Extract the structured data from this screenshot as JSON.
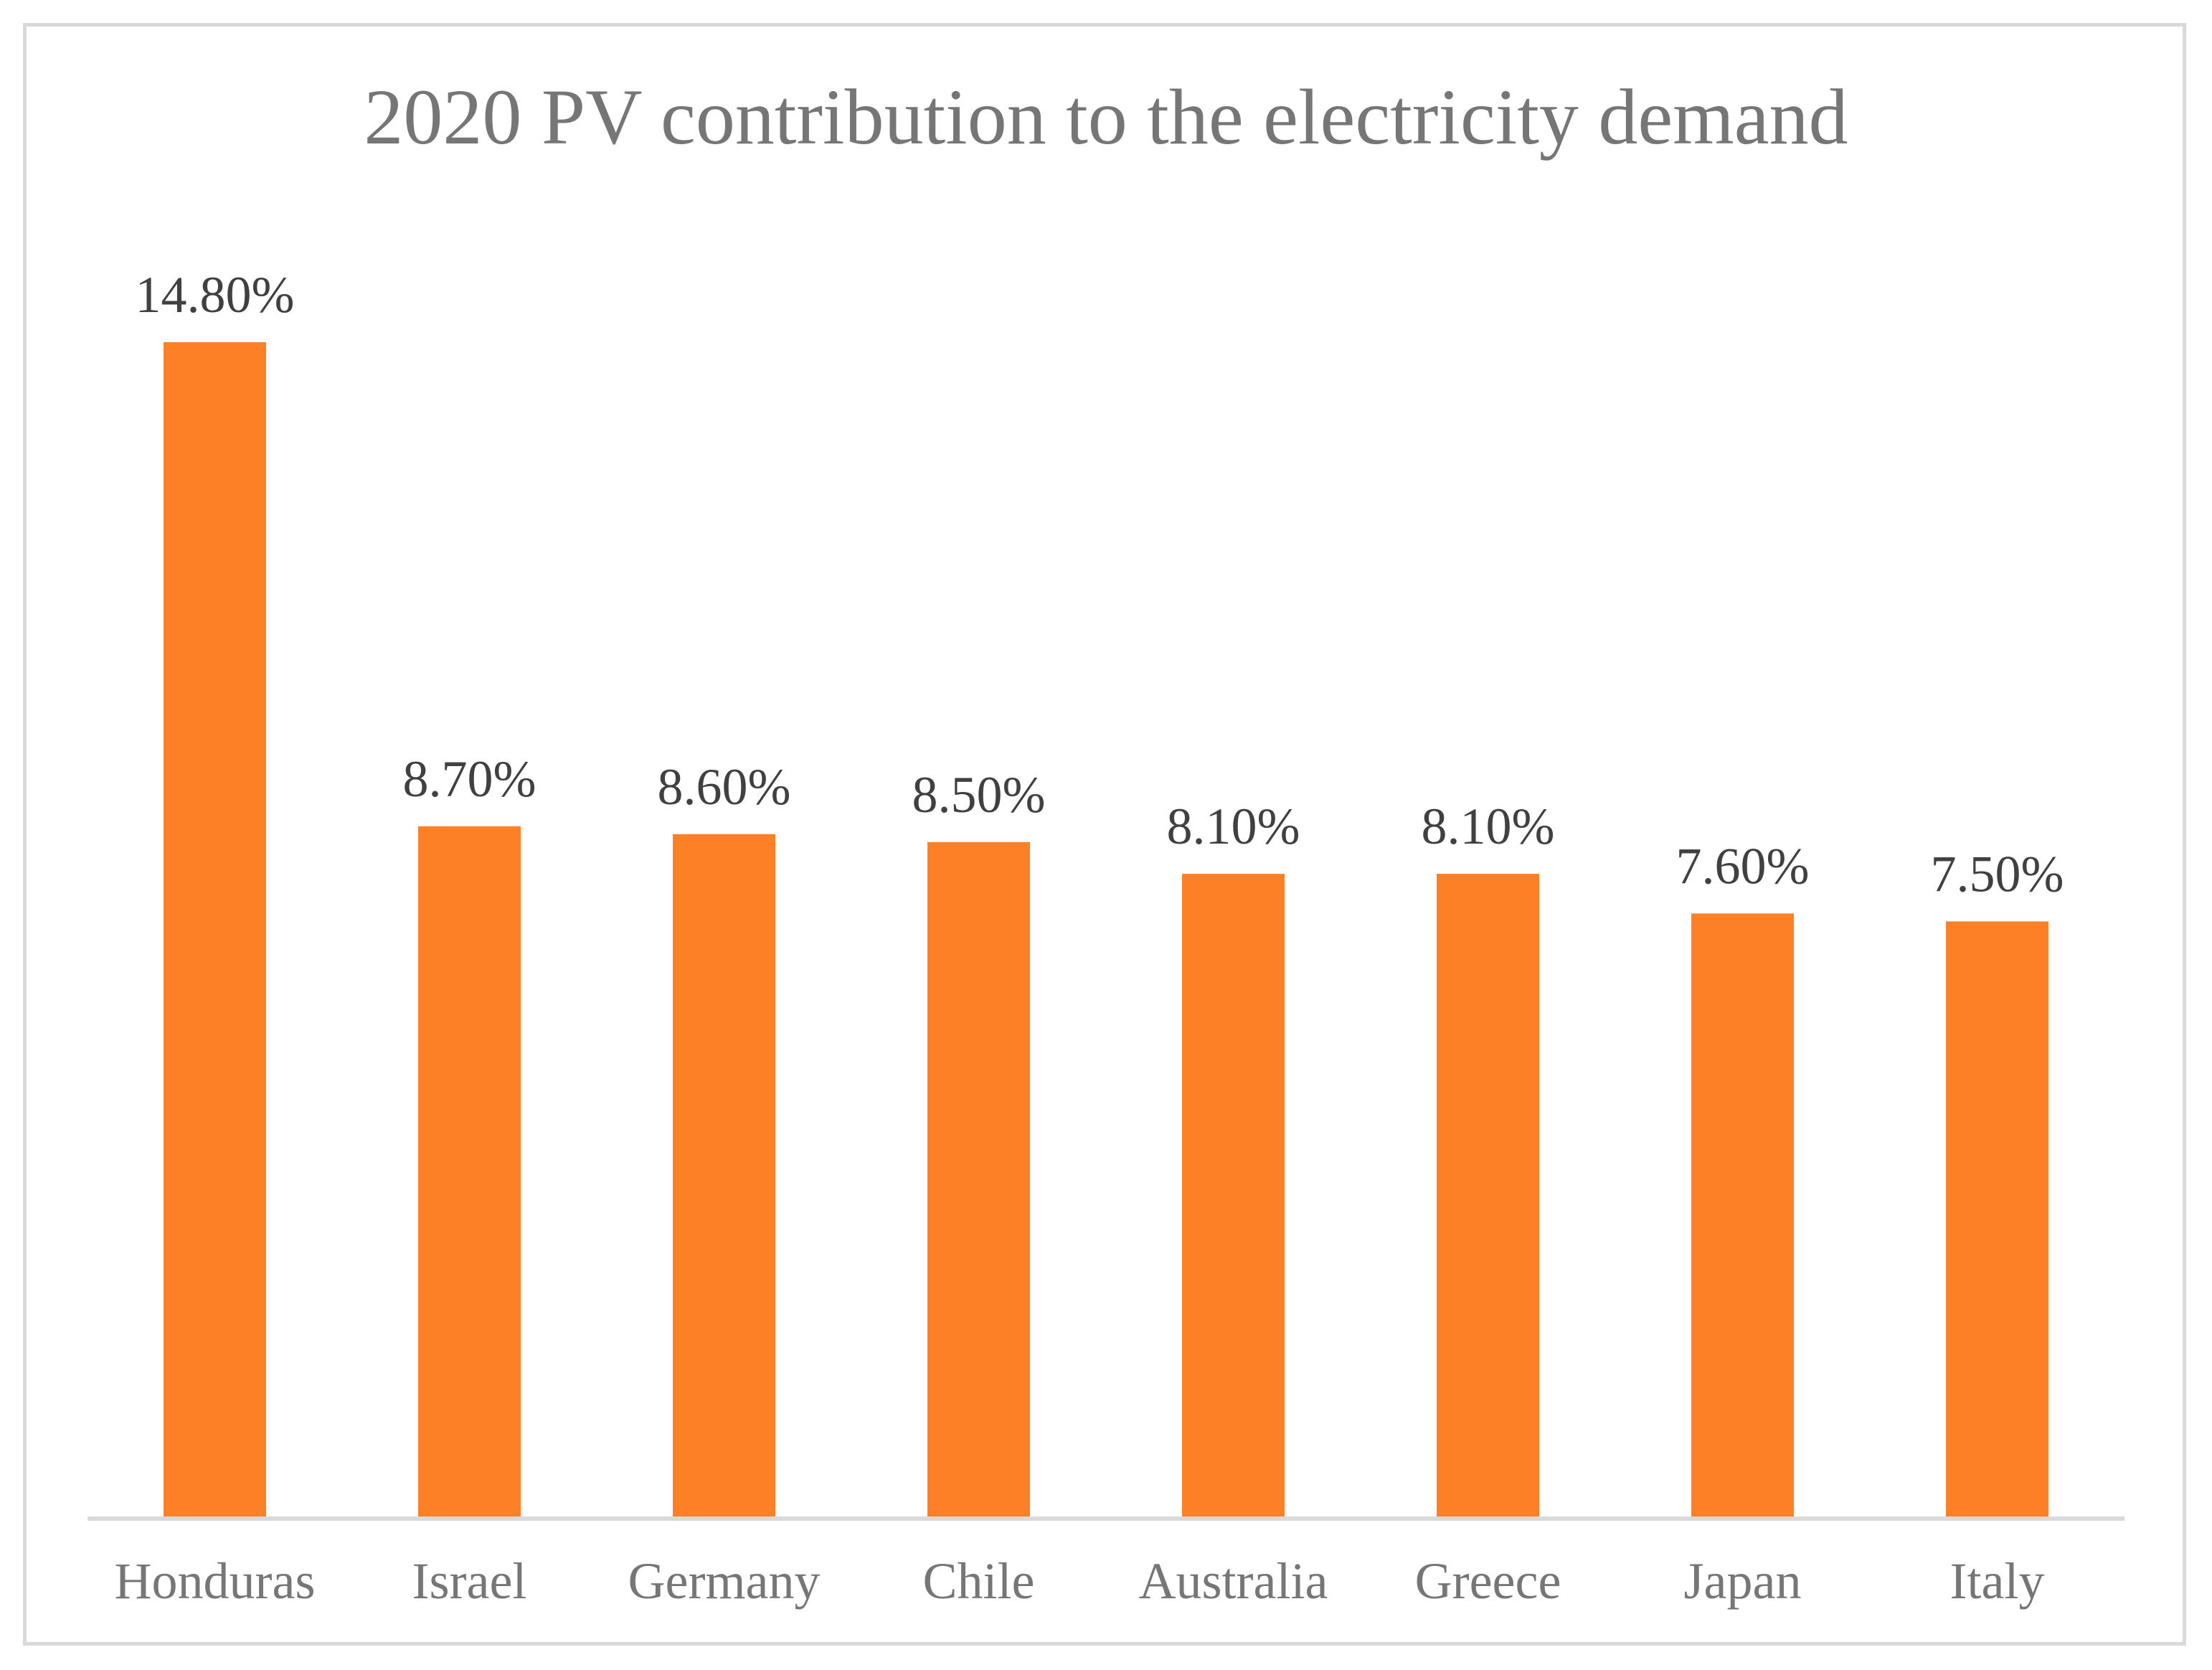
{
  "chart_data": {
    "type": "bar",
    "title": "2020 PV contribution to the electricity demand",
    "xlabel": "",
    "ylabel": "",
    "ylim": [
      0,
      16
    ],
    "grid": false,
    "legend": "none",
    "categories": [
      "Honduras",
      "Israel",
      "Germany",
      "Chile",
      "Australia",
      "Greece",
      "Japan",
      "Italy"
    ],
    "values": [
      14.8,
      8.7,
      8.6,
      8.5,
      8.1,
      8.1,
      7.6,
      7.5
    ],
    "data_labels": [
      "14.80%",
      "8.70%",
      "8.60%",
      "8.50%",
      "8.10%",
      "8.10%",
      "7.60%",
      "7.50%"
    ],
    "colors": {
      "bar": "#fd7f26",
      "axis": "#d9d9d9",
      "text": "#767676",
      "frame": "#d9d9d9"
    }
  }
}
